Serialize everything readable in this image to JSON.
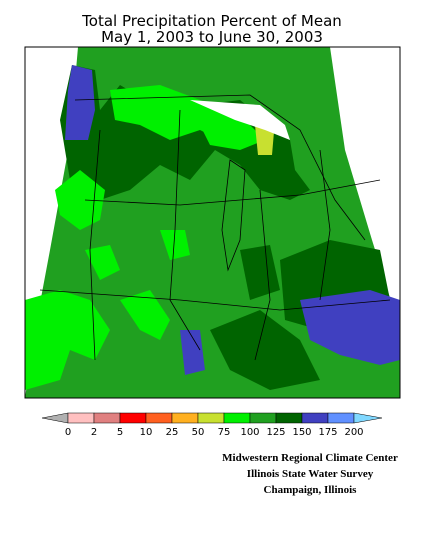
{
  "header": {
    "title_line1": "Total Precipitation Percent of Mean",
    "title_line2": "May 1, 2003 to June 30, 2003"
  },
  "legend": {
    "labels": [
      "0",
      "2",
      "5",
      "10",
      "25",
      "50",
      "75",
      "100",
      "125",
      "150",
      "175",
      "200"
    ],
    "colors": [
      "#ffc0c0",
      "#e08080",
      "#ff0000",
      "#ff6020",
      "#ffb020",
      "#c8e030",
      "#00f000",
      "#20a020",
      "#006400",
      "#4040c0",
      "#6090ff"
    ],
    "low_color": "#b0b0b0",
    "high_color": "#80d8ff"
  },
  "credits": [
    "Midwestern Regional Climate Center",
    "Illinois State Water Survey",
    "Champaign, Illinois"
  ]
}
